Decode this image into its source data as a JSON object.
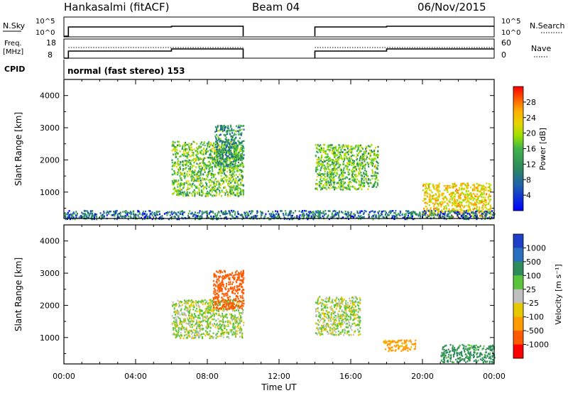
{
  "header": {
    "station": "Hankasalmi (fitACF)",
    "beam": "Beam 04",
    "date": "06/Nov/2015"
  },
  "panels": {
    "nsky": {
      "label": "N.Sky",
      "right_label": "N.Search",
      "left_ticks": [
        "10^5",
        "10^0"
      ],
      "right_ticks": [
        "10^5",
        "10^0"
      ]
    },
    "freq": {
      "label": "Freq.",
      "unit": "[MHz]",
      "right_label": "Nave",
      "left_ticks": [
        "18",
        "8"
      ],
      "right_ticks": [
        "60",
        "0"
      ]
    },
    "cpid": {
      "label": "CPID",
      "text": "normal (fast stereo) 153"
    }
  },
  "axes": {
    "ylabel": "Slant Range [km]",
    "xlabel": "Time UT",
    "yticks": [
      "4000",
      "3000",
      "2000",
      "1000"
    ],
    "xticks": [
      "00:00",
      "04:00",
      "08:00",
      "12:00",
      "16:00",
      "20:00",
      "00:00"
    ]
  },
  "colorbars": {
    "power": {
      "label": "Power [dB]",
      "ticks": [
        "28",
        "24",
        "20",
        "16",
        "12",
        "8",
        "4"
      ],
      "colors": [
        "#ff0000",
        "#ff3c00",
        "#ff7a00",
        "#ffb000",
        "#e6d400",
        "#9ae000",
        "#3fb44a",
        "#2e8c5a",
        "#1f5fb0",
        "#0000ff"
      ]
    },
    "velocity": {
      "label": "Velocity [m s⁻¹]",
      "ticks": [
        "1000",
        "500",
        "100",
        "25",
        "-25",
        "-100",
        "-500",
        "-1000"
      ],
      "colors": [
        "#1f3fc8",
        "#2a6fbe",
        "#2e8c5a",
        "#5cc43c",
        "#bfbfbf",
        "#e6c800",
        "#ff9a00",
        "#ff5a00",
        "#ff0000"
      ]
    }
  },
  "chart_data": {
    "type": "heatmap",
    "x_range_hours": [
      0,
      24
    ],
    "y_range_km": [
      180,
      4500
    ],
    "data_gap_hours": [
      10,
      14
    ],
    "mode_change_hours": [
      6,
      18
    ],
    "power_regions_dB": [
      {
        "t_start": 6.0,
        "t_end": 10.0,
        "range_start_km": 900,
        "range_end_km": 2600,
        "level_dB": 14
      },
      {
        "t_start": 8.4,
        "t_end": 10.0,
        "range_start_km": 1800,
        "range_end_km": 3100,
        "level_dB": 10
      },
      {
        "t_start": 14.0,
        "t_end": 17.5,
        "range_start_km": 1100,
        "range_end_km": 2500,
        "level_dB": 14
      },
      {
        "t_start": 20.0,
        "t_end": 23.8,
        "range_start_km": 250,
        "range_end_km": 1300,
        "level_dB": 20
      },
      {
        "t_start": 0.0,
        "t_end": 24.0,
        "range_start_km": 180,
        "range_end_km": 450,
        "level_dB": 8
      }
    ],
    "velocity_regions_ms": [
      {
        "t_start": 6.0,
        "t_end": 10.0,
        "range_start_km": 1000,
        "range_end_km": 2200,
        "velocity": 0
      },
      {
        "t_start": 8.3,
        "t_end": 10.0,
        "range_start_km": 1900,
        "range_end_km": 3100,
        "velocity": -500
      },
      {
        "t_start": 14.0,
        "t_end": 16.5,
        "range_start_km": 1100,
        "range_end_km": 2300,
        "velocity": 0
      },
      {
        "t_start": 17.8,
        "t_end": 19.6,
        "range_start_km": 600,
        "range_end_km": 950,
        "velocity": -100
      },
      {
        "t_start": 21.0,
        "t_end": 24.0,
        "range_start_km": 250,
        "range_end_km": 800,
        "velocity": 100
      }
    ]
  }
}
